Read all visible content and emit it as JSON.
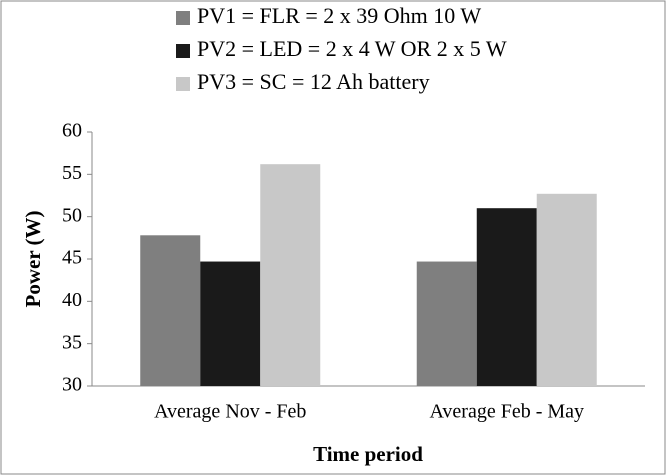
{
  "chart_data": {
    "type": "bar",
    "categories": [
      "Average Nov - Feb",
      "Average Feb - May"
    ],
    "series": [
      {
        "name": "PV1 = FLR = 2 x 39 Ohm 10 W",
        "color": "#7f7f7f",
        "values": [
          47.8,
          44.7
        ]
      },
      {
        "name": "PV2 = LED = 2 x 4 W OR 2 x 5 W",
        "color": "#1a1a1a",
        "values": [
          44.7,
          51.0
        ]
      },
      {
        "name": "PV3 = SC = 12 Ah battery",
        "color": "#c8c8c8",
        "values": [
          56.2,
          52.7
        ]
      }
    ],
    "ylabel": "Power (W)",
    "xlabel": "Time period",
    "ylim": [
      30,
      60
    ],
    "yticks": [
      30,
      35,
      40,
      45,
      50,
      55,
      60
    ],
    "grid": false,
    "legend": "top"
  }
}
